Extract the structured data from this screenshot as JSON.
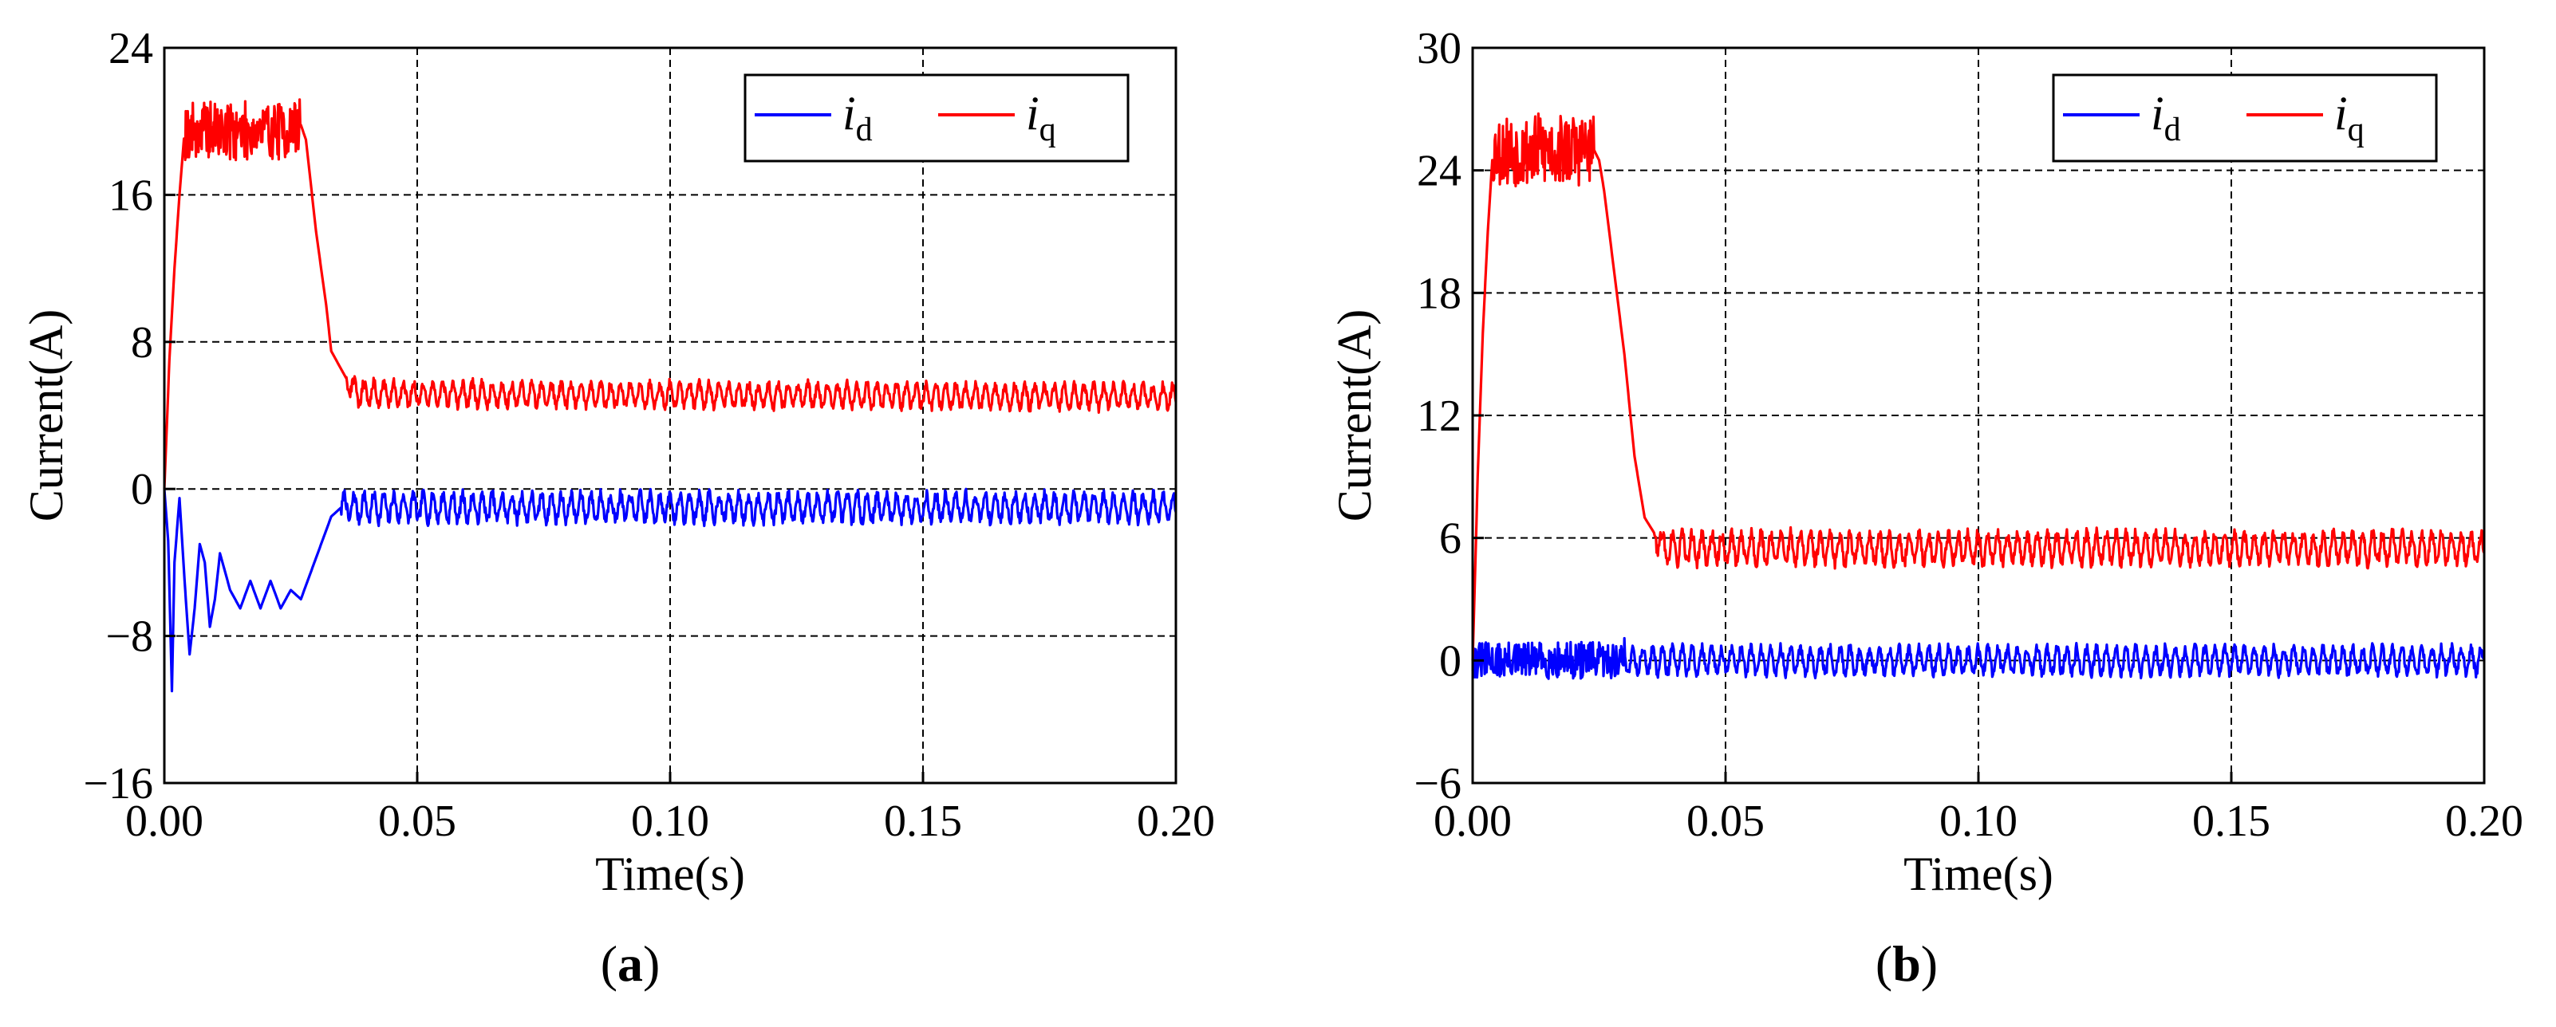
{
  "figure": {
    "panels": [
      "(a)",
      "(b)"
    ]
  },
  "chart_data": [
    {
      "type": "line",
      "panel_label": "(a)",
      "xlabel": "Time(s)",
      "ylabel": "Current(A)",
      "xlim": [
        0.0,
        0.2
      ],
      "ylim": [
        -16,
        24
      ],
      "xticks": [
        "0.00",
        "0.05",
        "0.10",
        "0.15",
        "0.20"
      ],
      "yticks": [
        "24",
        "16",
        "8",
        "0",
        "−8",
        "−16"
      ],
      "grid": "dashed",
      "legend_position": "top-right",
      "series": [
        {
          "name": "i_d",
          "legend_main": "i",
          "legend_sub": "d",
          "color": "#0000ff",
          "points": [
            [
              0.0,
              0
            ],
            [
              0.0008,
              -3
            ],
            [
              0.0015,
              -11
            ],
            [
              0.002,
              -4
            ],
            [
              0.003,
              -0.5
            ],
            [
              0.004,
              -5
            ],
            [
              0.005,
              -9
            ],
            [
              0.006,
              -6.5
            ],
            [
              0.007,
              -3
            ],
            [
              0.008,
              -4
            ],
            [
              0.009,
              -7.5
            ],
            [
              0.01,
              -6
            ],
            [
              0.011,
              -3.5
            ],
            [
              0.013,
              -5.5
            ],
            [
              0.015,
              -6.5
            ],
            [
              0.017,
              -5
            ],
            [
              0.019,
              -6.5
            ],
            [
              0.021,
              -5
            ],
            [
              0.023,
              -6.5
            ],
            [
              0.025,
              -5.5
            ],
            [
              0.027,
              -6
            ],
            [
              0.029,
              -4.5
            ],
            [
              0.031,
              -3
            ],
            [
              0.033,
              -1.5
            ],
            [
              0.035,
              -1
            ],
            [
              0.2,
              -1
            ]
          ],
          "ripple_amp": 0.7,
          "ripple_from": 0.035
        },
        {
          "name": "i_q",
          "legend_main": "i",
          "legend_sub": "q",
          "color": "#ff0000",
          "points": [
            [
              0.0,
              0
            ],
            [
              0.001,
              7
            ],
            [
              0.002,
              12
            ],
            [
              0.003,
              16
            ],
            [
              0.004,
              19.5
            ],
            [
              0.025,
              19.5
            ],
            [
              0.027,
              19.8
            ],
            [
              0.028,
              19
            ],
            [
              0.03,
              14
            ],
            [
              0.032,
              10
            ],
            [
              0.033,
              7.5
            ],
            [
              0.034,
              7
            ],
            [
              0.036,
              6
            ],
            [
              0.038,
              5.2
            ],
            [
              0.2,
              5
            ]
          ],
          "noise_amp": 1.6,
          "noise_range": [
            0.004,
            0.027
          ],
          "ripple_amp": 0.6,
          "ripple_from": 0.036
        }
      ]
    },
    {
      "type": "line",
      "panel_label": "(b)",
      "xlabel": "Time(s)",
      "ylabel": "Current(A)",
      "xlim": [
        0.0,
        0.2
      ],
      "ylim": [
        -6,
        30
      ],
      "xticks": [
        "0.00",
        "0.05",
        "0.10",
        "0.15",
        "0.20"
      ],
      "yticks": [
        "30",
        "24",
        "18",
        "12",
        "6",
        "0",
        "−6"
      ],
      "grid": "dashed",
      "legend_position": "top-right",
      "series": [
        {
          "name": "i_d",
          "legend_main": "i",
          "legend_sub": "d",
          "color": "#0000ff",
          "points": [
            [
              0.0,
              0
            ],
            [
              0.2,
              0
            ]
          ],
          "noise_amp": 0.9,
          "noise_range": [
            0.0,
            0.03
          ],
          "ripple_amp": 0.6,
          "ripple_from": 0.03
        },
        {
          "name": "i_q",
          "legend_main": "i",
          "legend_sub": "q",
          "color": "#ff0000",
          "points": [
            [
              0.0,
              0
            ],
            [
              0.001,
              9
            ],
            [
              0.002,
              16
            ],
            [
              0.003,
              21
            ],
            [
              0.004,
              25
            ],
            [
              0.024,
              25
            ],
            [
              0.025,
              24.5
            ],
            [
              0.026,
              23
            ],
            [
              0.028,
              19
            ],
            [
              0.03,
              15
            ],
            [
              0.032,
              10
            ],
            [
              0.034,
              7
            ],
            [
              0.036,
              6.2
            ],
            [
              0.038,
              5.5
            ],
            [
              0.2,
              5.5
            ]
          ],
          "noise_amp": 1.8,
          "noise_range": [
            0.004,
            0.024
          ],
          "ripple_amp": 0.7,
          "ripple_from": 0.036
        }
      ]
    }
  ]
}
